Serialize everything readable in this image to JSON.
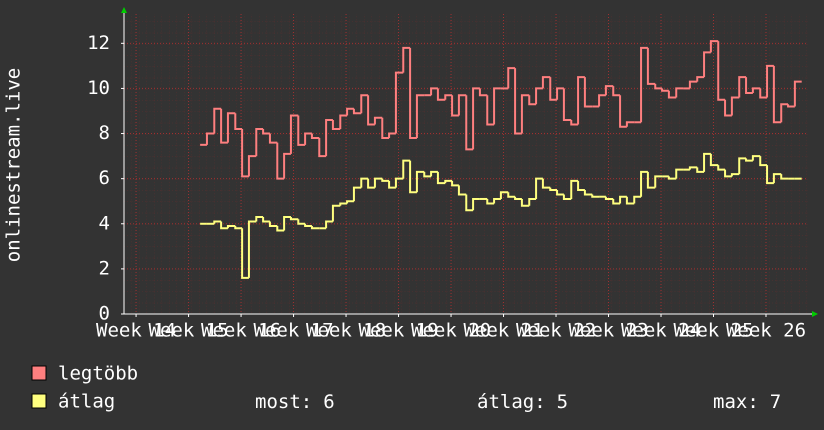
{
  "chart_data": {
    "type": "step",
    "y_label": "onlinestream.live",
    "xlim": [
      13.77,
      26.8
    ],
    "ylim": [
      0,
      13.3
    ],
    "xticks": [
      {
        "value": 14,
        "label": "Week 14"
      },
      {
        "value": 15,
        "label": "Week 15"
      },
      {
        "value": 16,
        "label": "Week 16"
      },
      {
        "value": 17,
        "label": "Week 17"
      },
      {
        "value": 18,
        "label": "Week 18"
      },
      {
        "value": 19,
        "label": "Week 19"
      },
      {
        "value": 20,
        "label": "Week 20"
      },
      {
        "value": 21,
        "label": "Week 21"
      },
      {
        "value": 22,
        "label": "Week 22"
      },
      {
        "value": 23,
        "label": "Week 23"
      },
      {
        "value": 24,
        "label": "Week 24"
      },
      {
        "value": 25,
        "label": "Week 25"
      },
      {
        "value": 26,
        "label": "Week 26"
      }
    ],
    "yticks": [
      0,
      2,
      4,
      6,
      8,
      10,
      12
    ],
    "grid": true,
    "x": [
      15.22,
      15.35,
      15.49,
      15.62,
      15.75,
      15.89,
      16.02,
      16.15,
      16.29,
      16.42,
      16.55,
      16.69,
      16.82,
      16.95,
      17.09,
      17.22,
      17.35,
      17.49,
      17.62,
      17.75,
      17.89,
      18.02,
      18.15,
      18.29,
      18.42,
      18.55,
      18.69,
      18.82,
      18.95,
      19.09,
      19.22,
      19.35,
      19.49,
      19.62,
      19.75,
      19.89,
      20.02,
      20.15,
      20.29,
      20.42,
      20.55,
      20.69,
      20.82,
      20.95,
      21.09,
      21.22,
      21.35,
      21.49,
      21.62,
      21.75,
      21.89,
      22.02,
      22.15,
      22.29,
      22.42,
      22.55,
      22.69,
      22.82,
      22.95,
      23.09,
      23.22,
      23.35,
      23.49,
      23.62,
      23.75,
      23.89,
      24.02,
      24.15,
      24.29,
      24.42,
      24.55,
      24.69,
      24.82,
      24.95,
      25.09,
      25.22,
      25.35,
      25.49,
      25.62,
      25.75,
      25.89,
      26.02,
      26.15,
      26.29,
      26.42,
      26.55
    ],
    "series": [
      {
        "name": "legtöbb",
        "color": "#ff7f7f",
        "values": [
          7.5,
          8,
          9.1,
          7.6,
          8.9,
          8.2,
          6.1,
          7,
          8.2,
          8.0,
          7.6,
          6.0,
          7.1,
          8.8,
          7.5,
          8,
          7.8,
          7,
          8.6,
          8.2,
          8.8,
          9.1,
          8.9,
          9.7,
          8.4,
          8.7,
          7.8,
          8,
          10.7,
          11.8,
          7.8,
          9.7,
          9.7,
          10,
          9.5,
          9.7,
          8.8,
          9.7,
          7.3,
          10,
          9.7,
          8.4,
          10,
          10,
          10.9,
          8,
          9.7,
          9.3,
          10,
          10.5,
          9.5,
          10,
          8.6,
          8.4,
          10.5,
          9.2,
          9.2,
          9.7,
          10.1,
          9.7,
          8.3,
          8.5,
          8.5,
          11.8,
          10.2,
          10,
          9.9,
          9.6,
          10,
          10,
          10.3,
          10.5,
          11.6,
          12.1,
          9.5,
          8.8,
          9.6,
          10.5,
          9.8,
          10,
          9.6,
          11,
          8.5,
          9.3,
          9.2,
          10.3
        ]
      },
      {
        "name": "átlag",
        "color": "#ffff7f",
        "values": [
          4.0,
          4.0,
          4.1,
          3.8,
          3.9,
          3.8,
          1.6,
          4.1,
          4.3,
          4.1,
          3.9,
          3.7,
          4.3,
          4.2,
          4.0,
          3.9,
          3.8,
          3.8,
          4.1,
          4.8,
          4.9,
          5.0,
          5.6,
          6.0,
          5.6,
          6.0,
          5.9,
          5.6,
          6.0,
          6.8,
          5.4,
          6.3,
          6.1,
          6.3,
          5.8,
          5.9,
          5.7,
          5.3,
          4.6,
          5.1,
          5.1,
          4.9,
          5.1,
          5.4,
          5.2,
          5.1,
          4.8,
          5.1,
          6.0,
          5.6,
          5.5,
          5.3,
          5.1,
          5.9,
          5.5,
          5.3,
          5.2,
          5.2,
          5.1,
          4.9,
          5.2,
          4.9,
          5.2,
          6.3,
          5.6,
          6.1,
          6.1,
          6.0,
          6.4,
          6.4,
          6.5,
          6.3,
          7.1,
          6.6,
          6.4,
          6.1,
          6.2,
          6.9,
          6.8,
          7.0,
          6.6,
          5.8,
          6.2,
          6.0,
          6.0,
          6.0
        ]
      }
    ],
    "stats": [
      {
        "label": "most:",
        "value": 6
      },
      {
        "label": "átlag:",
        "value": 5
      },
      {
        "label": "max:",
        "value": 7
      }
    ]
  }
}
